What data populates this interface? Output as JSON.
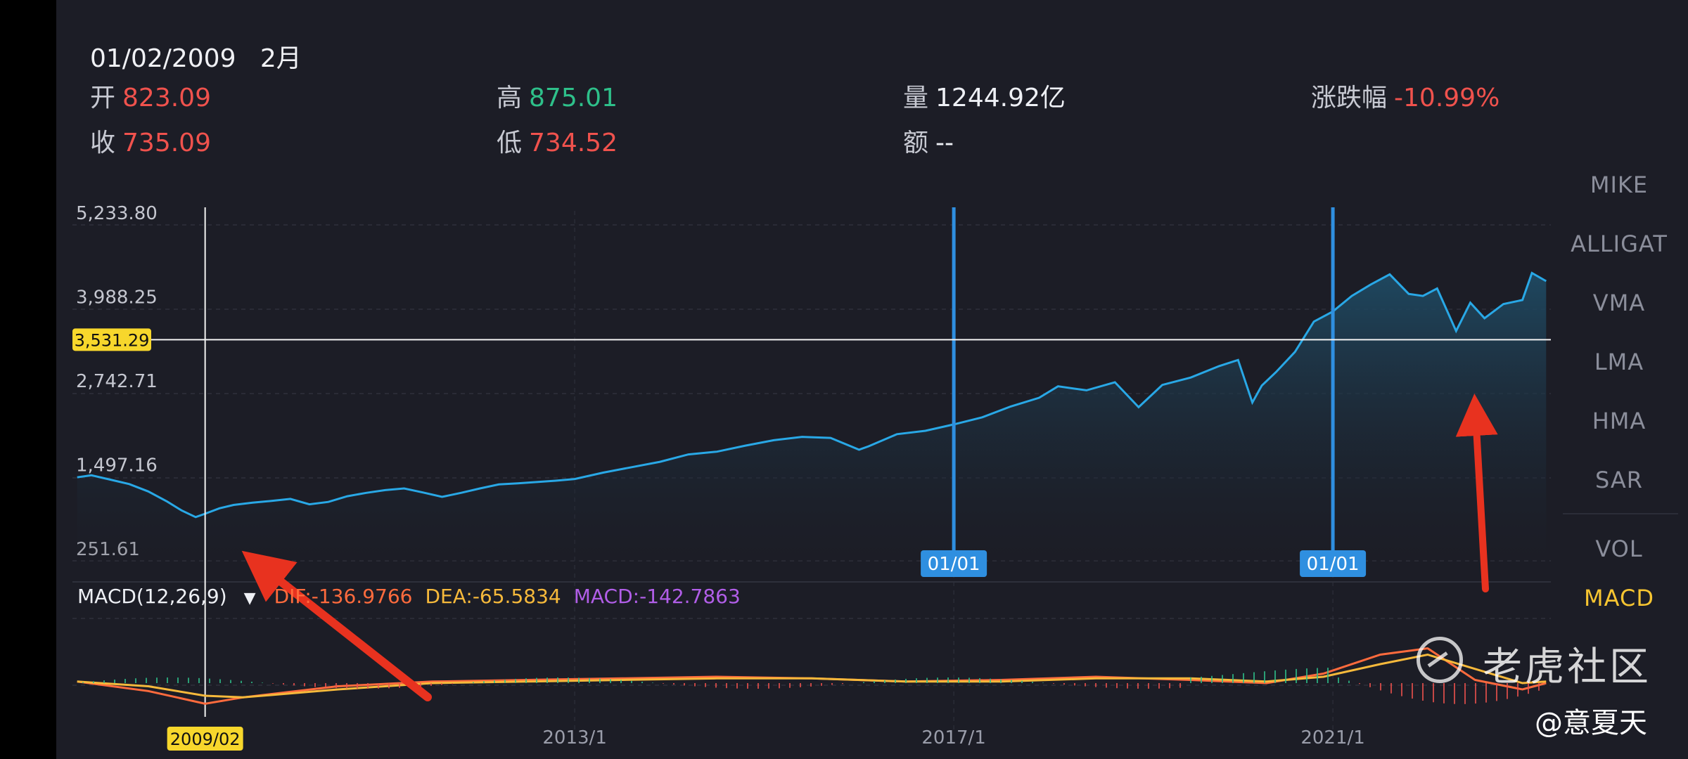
{
  "header": {
    "date": "01/02/2009",
    "period": "2月",
    "open": {
      "label": "开",
      "value": "823.09"
    },
    "high": {
      "label": "高",
      "value": "875.01"
    },
    "volume": {
      "label": "量",
      "value": "1244.92亿"
    },
    "change": {
      "label": "涨跌幅",
      "value": "-10.99%"
    },
    "close": {
      "label": "收",
      "value": "735.09"
    },
    "low": {
      "label": "低",
      "value": "734.52"
    },
    "amount": {
      "label": "额",
      "value": "--"
    }
  },
  "right_menu": {
    "items": [
      "MIKE",
      "ALLIGAT",
      "VMA",
      "LMA",
      "HMA",
      "SAR",
      "VOL",
      "MACD"
    ],
    "active": "MACD"
  },
  "macd": {
    "title": "MACD(12,26,9)",
    "dif": "DIF:-136.9766",
    "dea": "DEA:-65.5834",
    "macd": "MACD:-142.7863"
  },
  "crosshair": {
    "price_label": "3,531.29",
    "date_label": "2009/02"
  },
  "markers": [
    "01/01",
    "01/01"
  ],
  "x_labels": [
    "2013/1",
    "2017/1",
    "2021/1"
  ],
  "watermark": {
    "brand": "老虎社区",
    "handle": "@意夏天"
  },
  "colors": {
    "background": "#1c1d26",
    "line": "#29a8e6",
    "up": "#2ec08a",
    "down": "#f0524d",
    "highlight": "#f7d72c",
    "marker": "#2f8fe0",
    "dif": "#ff6b3d",
    "dea": "#f6b93b",
    "arrow": "#e8321f"
  },
  "chart_data": {
    "type": "area",
    "y_ticks": [
      "5,233.80",
      "3,988.25",
      "2,742.71",
      "1,497.16",
      "251.61"
    ],
    "ylim": [
      251.61,
      5233.8
    ],
    "xlim": [
      2007.7,
      2023.3
    ],
    "series": [
      {
        "x": [
          2007.75,
          2007.9,
          2008.1,
          2008.3,
          2008.5,
          2008.7,
          2008.85,
          2009.0,
          2009.1,
          2009.25,
          2009.4,
          2009.6,
          2009.8,
          2010.0,
          2010.2,
          2010.4,
          2010.6,
          2010.8,
          2011.0,
          2011.2,
          2011.4,
          2011.6,
          2011.8,
          2012.0,
          2012.2,
          2012.4,
          2012.6,
          2012.8,
          2013.0,
          2013.3,
          2013.6,
          2013.9,
          2014.2,
          2014.5,
          2014.8,
          2015.1,
          2015.4,
          2015.7,
          2016.0,
          2016.1,
          2016.4,
          2016.7,
          2017.0,
          2017.3,
          2017.6,
          2017.9,
          2018.1,
          2018.4,
          2018.7,
          2018.95,
          2019.2,
          2019.5,
          2019.8,
          2020.0,
          2020.15,
          2020.25,
          2020.4,
          2020.6,
          2020.8,
          2021.0,
          2021.2,
          2021.4,
          2021.6,
          2021.8,
          2021.95,
          2022.1,
          2022.3,
          2022.45,
          2022.6,
          2022.8,
          2023.0,
          2023.1,
          2023.25
        ],
        "y": [
          1490,
          1520,
          1455,
          1390,
          1280,
          1130,
          1000,
          900,
          950,
          1030,
          1080,
          1115,
          1140,
          1170,
          1090,
          1125,
          1210,
          1260,
          1300,
          1325,
          1265,
          1200,
          1260,
          1325,
          1385,
          1400,
          1420,
          1440,
          1465,
          1560,
          1640,
          1720,
          1830,
          1870,
          1960,
          2040,
          2090,
          2075,
          1900,
          1950,
          2130,
          2180,
          2275,
          2380,
          2540,
          2670,
          2840,
          2780,
          2900,
          2530,
          2860,
          2970,
          3140,
          3230,
          2600,
          2850,
          3050,
          3350,
          3800,
          3950,
          4180,
          4350,
          4500,
          4210,
          4180,
          4290,
          3660,
          4080,
          3850,
          4060,
          4120,
          4520,
          4400
        ]
      }
    ],
    "macd_series": [
      {
        "name": "DIF",
        "x": [
          2007.75,
          2008.5,
          2009.1,
          2009.5,
          2010.5,
          2011.5,
          2012.5,
          2013.5,
          2014.5,
          2015.5,
          2016.5,
          2017.5,
          2018.5,
          2019.5,
          2020.3,
          2020.9,
          2021.5,
          2022.0,
          2022.5,
          2023.0,
          2023.25
        ],
        "y": [
          0.05,
          -0.25,
          -0.65,
          -0.45,
          -0.1,
          0.05,
          0.1,
          0.15,
          0.2,
          0.15,
          0.05,
          0.1,
          0.2,
          0.1,
          0.0,
          0.3,
          0.9,
          1.1,
          0.1,
          -0.2,
          0.0
        ]
      },
      {
        "name": "DEA",
        "x": [
          2007.75,
          2008.5,
          2009.1,
          2009.5,
          2010.5,
          2011.5,
          2012.5,
          2013.5,
          2014.5,
          2015.5,
          2016.5,
          2017.5,
          2018.5,
          2019.5,
          2020.3,
          2020.9,
          2021.5,
          2022.0,
          2022.5,
          2023.0,
          2023.25
        ],
        "y": [
          0.05,
          -0.1,
          -0.4,
          -0.45,
          -0.2,
          0.0,
          0.05,
          0.1,
          0.15,
          0.15,
          0.05,
          0.05,
          0.15,
          0.15,
          0.05,
          0.2,
          0.6,
          0.9,
          0.45,
          0.0,
          0.05
        ]
      }
    ],
    "grid": true
  }
}
